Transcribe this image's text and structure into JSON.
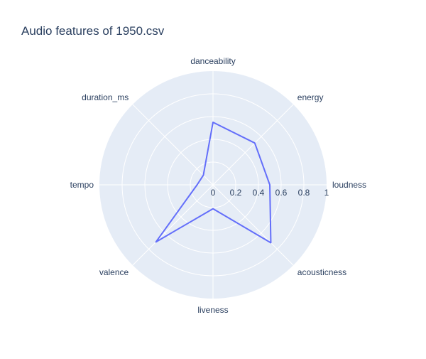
{
  "chart_data": {
    "type": "radar",
    "title": "Audio features of 1950.csv",
    "axes": [
      "danceability",
      "energy",
      "loudness",
      "acousticness",
      "liveness",
      "valence",
      "tempo",
      "duration_ms"
    ],
    "values": [
      0.55,
      0.52,
      0.5,
      0.72,
      0.21,
      0.71,
      0.14,
      0.12
    ],
    "radial_range": [
      0,
      1
    ],
    "radial_ticks": [
      "0",
      "0.2",
      "0.4",
      "0.6",
      "0.8",
      "1"
    ],
    "grid": true,
    "colors": {
      "line": "#636efa",
      "polar_bg": "#e5ecf6",
      "grid": "#ffffff",
      "text": "#2a3f5f"
    }
  }
}
